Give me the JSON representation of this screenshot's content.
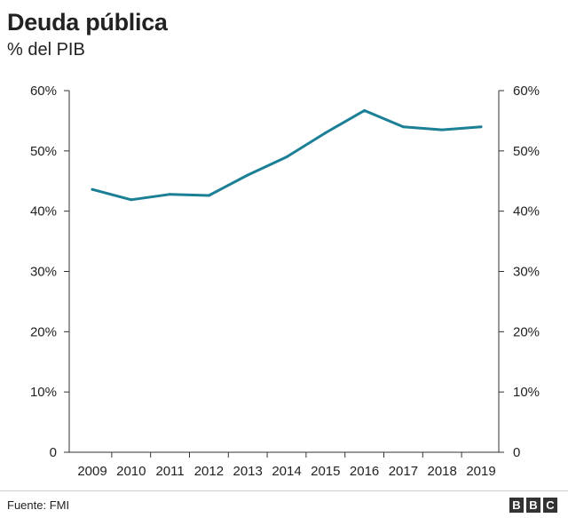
{
  "header": {
    "title": "Deuda pública",
    "subtitle": "% del PIB"
  },
  "footer": {
    "source": "Fuente: FMI",
    "logo_letters": [
      "B",
      "B",
      "C"
    ]
  },
  "colors": {
    "line": "#1b7f96",
    "grid": "#dddddd",
    "axis": "#333333"
  },
  "chart_data": {
    "type": "line",
    "x": [
      "2009",
      "2010",
      "2011",
      "2012",
      "2013",
      "2014",
      "2015",
      "2016",
      "2017",
      "2018",
      "2019"
    ],
    "series": [
      {
        "values": [
          43.6,
          41.9,
          42.8,
          42.6,
          46.0,
          49.0,
          53.0,
          56.7,
          54.0,
          53.5,
          54.0
        ]
      }
    ],
    "yticks": [
      0,
      10,
      20,
      30,
      40,
      50,
      60
    ],
    "ytick_labels": [
      "0",
      "10%",
      "20%",
      "30%",
      "40%",
      "50%",
      "60%"
    ],
    "ylim": [
      0,
      60
    ],
    "title": "Deuda pública",
    "subtitle": "% del PIB",
    "grid": false,
    "dual_y_axis": true
  }
}
